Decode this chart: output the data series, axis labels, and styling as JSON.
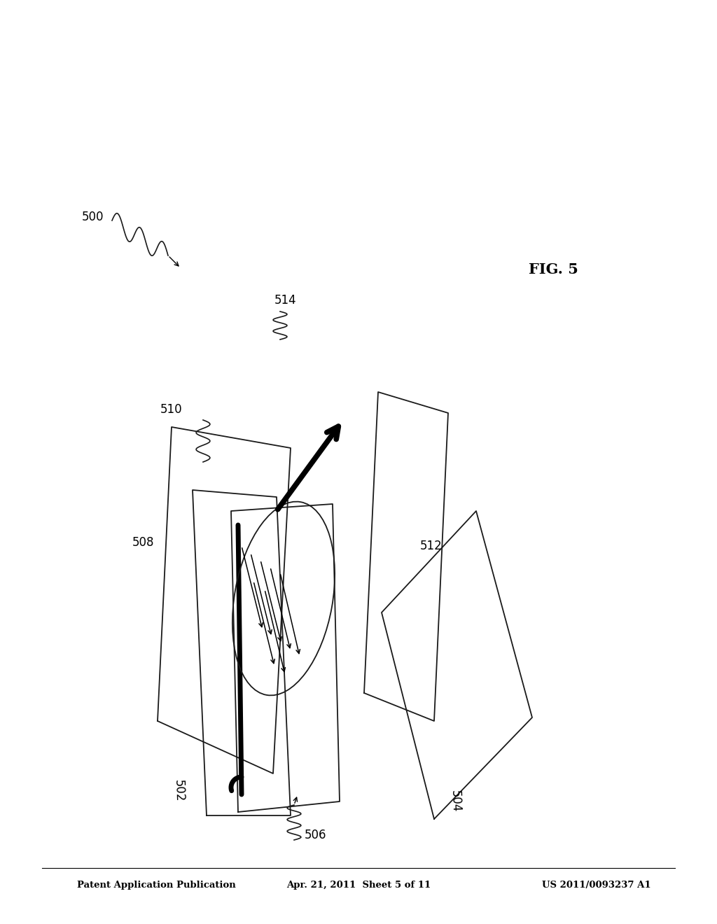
{
  "bg_color": "#ffffff",
  "header_left": "Patent Application Publication",
  "header_center": "Apr. 21, 2011  Sheet 5 of 11",
  "header_right": "US 2011/0093237 A1",
  "fig_label": "FIG. 5",
  "line_color": "#1a1a1a",
  "arrow_color": "#000000"
}
